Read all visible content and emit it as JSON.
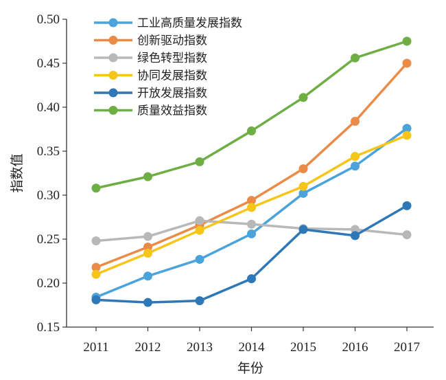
{
  "chart_data": {
    "type": "line",
    "title": "",
    "xlabel": "年份",
    "ylabel": "指数值",
    "x": [
      "2011",
      "2012",
      "2013",
      "2014",
      "2015",
      "2016",
      "2017"
    ],
    "ylim": [
      0.15,
      0.5
    ],
    "yticks": [
      "0.15",
      "0.20",
      "0.25",
      "0.30",
      "0.35",
      "0.40",
      "0.45",
      "0.50"
    ],
    "grid": false,
    "legend_position": "top-left",
    "series": [
      {
        "name": "工业高质量发展指数",
        "color": "#4ba3dc",
        "values": [
          0.184,
          0.208,
          0.227,
          0.256,
          0.302,
          0.333,
          0.376
        ]
      },
      {
        "name": "创新驱动指数",
        "color": "#ea8c47",
        "values": [
          0.218,
          0.241,
          0.266,
          0.294,
          0.33,
          0.384,
          0.45
        ]
      },
      {
        "name": "绿色转型指数",
        "color": "#b8b8b8",
        "values": [
          0.248,
          0.253,
          0.271,
          0.267,
          0.262,
          0.261,
          0.255
        ]
      },
      {
        "name": "协同发展指数",
        "color": "#f6c51a",
        "values": [
          0.21,
          0.234,
          0.26,
          0.286,
          0.31,
          0.344,
          0.368
        ]
      },
      {
        "name": "开放发展指数",
        "color": "#2e78b8",
        "values": [
          0.181,
          0.178,
          0.18,
          0.205,
          0.261,
          0.254,
          0.288
        ]
      },
      {
        "name": "质量效益指数",
        "color": "#6fae45",
        "values": [
          0.308,
          0.321,
          0.338,
          0.373,
          0.411,
          0.456,
          0.475
        ]
      }
    ]
  }
}
